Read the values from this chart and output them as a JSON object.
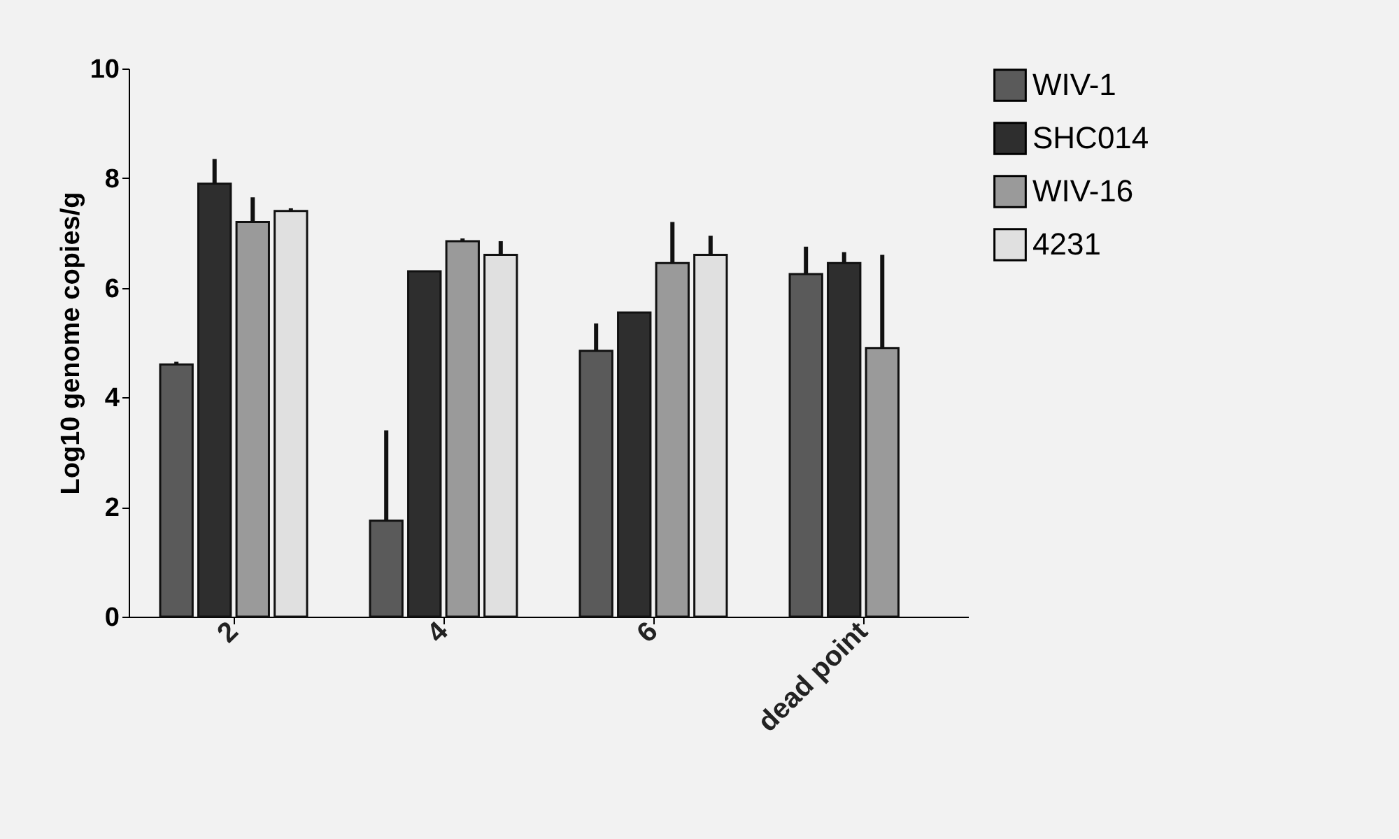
{
  "chart_data": {
    "type": "bar",
    "ylabel": "Log10 genome copies/g",
    "categories": [
      "2",
      "4",
      "6",
      "dead point"
    ],
    "series": [
      {
        "name": "WIV-1",
        "color": "#5a5a5a",
        "values": [
          4.6,
          1.75,
          4.85,
          6.25
        ],
        "errors": [
          [
            4.6,
            4.65
          ],
          [
            1.75,
            3.4
          ],
          [
            4.85,
            5.35
          ],
          [
            6.25,
            6.75
          ]
        ]
      },
      {
        "name": "SHC014",
        "color": "#2e2e2e",
        "values": [
          7.9,
          6.3,
          5.55,
          6.45
        ],
        "errors": [
          [
            7.9,
            8.35
          ],
          null,
          null,
          [
            6.45,
            6.65
          ]
        ]
      },
      {
        "name": "WIV-16",
        "color": "#9a9a9a",
        "values": [
          7.2,
          6.85,
          6.45,
          4.9
        ],
        "errors": [
          [
            7.2,
            7.65
          ],
          [
            6.85,
            6.9
          ],
          [
            6.45,
            7.2
          ],
          [
            4.9,
            6.6
          ]
        ]
      },
      {
        "name": "4231",
        "color": "#e0e0e0",
        "values": [
          7.4,
          6.6,
          6.6,
          null
        ],
        "errors": [
          [
            7.4,
            7.45
          ],
          [
            6.6,
            6.85
          ],
          [
            6.6,
            6.95
          ],
          null
        ]
      }
    ],
    "ylim": [
      0,
      10
    ],
    "yticks": [
      0,
      2,
      4,
      6,
      8,
      10
    ],
    "grid": false,
    "legend": "top right"
  }
}
